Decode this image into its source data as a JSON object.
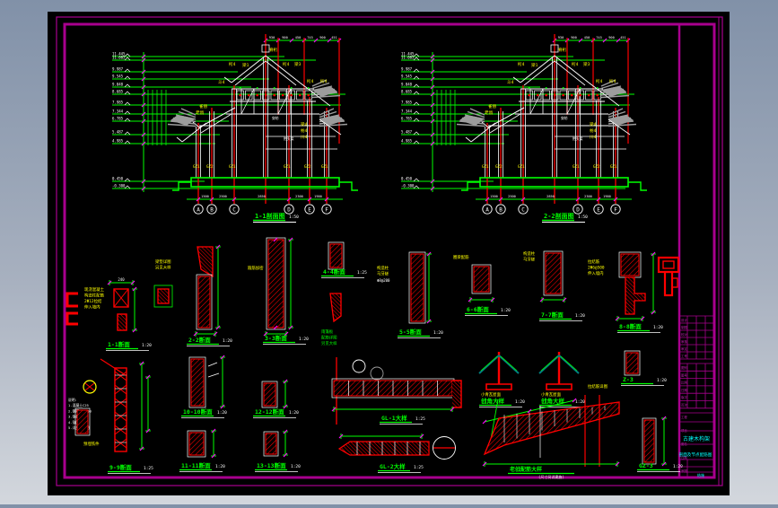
{
  "viewer": {
    "canvas_bg": "#000000",
    "border_color": "#a8008e",
    "tick_color": "#ff00ff",
    "dim_color": "#00ff00",
    "member_color": "#ff0000",
    "annot_color": "#ffff00",
    "eave_color": "#9c9c9c",
    "note_color": "#00ffff"
  },
  "drawing": {
    "sections": [
      {
        "id": "1",
        "title": "1-1剖面图",
        "scale": "1:50",
        "grid_bubbles": [
          "A",
          "B",
          "C",
          "D",
          "E",
          "F"
        ],
        "elevations": [
          "11.445",
          "11.085",
          "9.987",
          "9.545",
          "9.048",
          "8.685",
          "7.985",
          "7.344",
          "6.785",
          "5.487",
          "4.985",
          "0.450",
          "-0.300"
        ],
        "top_dims": [
          "930",
          "900",
          "450",
          "745",
          "900",
          "451"
        ],
        "bottom_dims": [
          "1500",
          "2500",
          "2850",
          "2300",
          "1900"
        ],
        "column_labels": [
          "GZ1",
          "GZ2",
          "GZ1",
          "GZ1",
          "GZ2",
          "GZ1"
        ],
        "yellow_labels": [
          "桁4",
          "梁1",
          "脊桁",
          "桁4",
          "梁3",
          "桁4",
          "雀替",
          "斗4",
          "梁4",
          "枋4",
          "川4",
          "老戗",
          "桁4"
        ],
        "white_notes": [
          "穿枋",
          "抱头梁"
        ]
      },
      {
        "id": "2",
        "title": "2-2剖面图",
        "scale": "1:50",
        "grid_bubbles": [
          "A",
          "B",
          "C",
          "D",
          "E",
          "F"
        ],
        "elevations": [
          "11.445",
          "11.085",
          "9.987",
          "9.545",
          "9.048",
          "8.685",
          "7.985",
          "7.344",
          "6.785",
          "5.487",
          "4.985",
          "0.450",
          "-0.300"
        ],
        "top_dims": [
          "930",
          "900",
          "450",
          "745",
          "900",
          "451"
        ],
        "bottom_dims": [
          "1500",
          "2500",
          "2850",
          "2300",
          "1900"
        ],
        "column_labels": [
          "GZ1",
          "GZ2",
          "GZ1",
          "GZ1",
          "GZ2",
          "GZ1"
        ],
        "yellow_labels": [
          "桁4",
          "梁1",
          "脊桁",
          "桁4",
          "梁3",
          "桁4",
          "雀替",
          "斗4",
          "梁4",
          "枋4",
          "川4",
          "老戗",
          "桁4"
        ],
        "white_notes": [
          "穿枋",
          "抱头梁"
        ]
      }
    ],
    "details": [
      {
        "id": "d1",
        "title": "1-1断面",
        "scale": "1:20",
        "labels": [
          "现浇混凝土",
          "构造柱配筋",
          "2Φ12拉结",
          "伸入墙内"
        ]
      },
      {
        "id": "d2",
        "title": "2-2断面",
        "scale": "1:20",
        "labels": [
          "梁垫详图",
          "另见大样"
        ]
      },
      {
        "id": "d3",
        "title": "3-3断面",
        "scale": "1:20",
        "labels": [
          "箍筋加密"
        ]
      },
      {
        "id": "d4",
        "title": "4-4断面",
        "scale": "1:25",
        "labels": [
          "雨篷板",
          "配筋详图",
          "另见大样"
        ]
      },
      {
        "id": "d5",
        "title": "5-5断面",
        "scale": "1:20",
        "labels": [
          "构造柱",
          "马牙槎"
        ]
      },
      {
        "id": "d6",
        "title": "6-6断面",
        "scale": "1:20",
        "labels": [
          "圈梁配筋"
        ]
      },
      {
        "id": "d7",
        "title": "7-7断面",
        "scale": "1:20",
        "labels": [
          "构造柱",
          "马牙槎"
        ]
      },
      {
        "id": "d8",
        "title": "8-8断面",
        "scale": "1:20",
        "labels": [
          "拉结筋",
          "2Φ6@500",
          "伸入墙内"
        ]
      },
      {
        "id": "e1",
        "title": "9-9断面",
        "scale": "1:25",
        "labels": [
          "预埋铁件"
        ]
      },
      {
        "id": "e2",
        "title": "10-10断面",
        "scale": "1:20",
        "labels": []
      },
      {
        "id": "e3",
        "title": "11-11断面",
        "scale": "1:20",
        "labels": []
      },
      {
        "id": "e4",
        "title": "12-12断面",
        "scale": "1:20",
        "labels": []
      },
      {
        "id": "e5",
        "title": "13-13断面",
        "scale": "1:20",
        "labels": []
      },
      {
        "id": "e6",
        "title": "GL-1大样",
        "scale": "1:25",
        "labels": []
      },
      {
        "id": "e7",
        "title": "GL-2大样",
        "scale": "1:25",
        "labels": []
      },
      {
        "id": "e8a",
        "title": "戗角大样",
        "scale": "1:20",
        "labels": [
          "小青瓦屋面"
        ]
      },
      {
        "id": "e8b",
        "title": "戗角大样",
        "scale": "1:20",
        "labels": [
          "小青瓦屋面"
        ]
      },
      {
        "id": "e9",
        "title": "Z-3",
        "scale": "1:20",
        "labels": [
          "拉结筋详图"
        ]
      },
      {
        "id": "e10",
        "title": "老戗配筋大样",
        "scale": "1:20",
        "labels": [
          "(尺寸另详建施)"
        ]
      },
      {
        "id": "e11",
        "title": "GZ-3",
        "scale": "1:20",
        "labels": []
      }
    ],
    "general_notes": [
      "说明:",
      "1.混凝土C25",
      "2.钢筋HPB300",
      "3.保护层25",
      "4.锚固35d",
      "5.详见总说明"
    ]
  },
  "title_block": {
    "rows_top": [
      "设计",
      "制图",
      "校对",
      "审核",
      "审定",
      "工号"
    ],
    "rows_mid": [
      "图别",
      "图号",
      "比例",
      "日期",
      "版次",
      "页次"
    ],
    "rows_bottom": [
      "工程",
      "项目",
      "图名",
      "日期",
      "审图"
    ],
    "cyan_title": "古建木构架",
    "cyan_subtitle": "剖面及节点配筋图",
    "cyan_no": "结施"
  }
}
